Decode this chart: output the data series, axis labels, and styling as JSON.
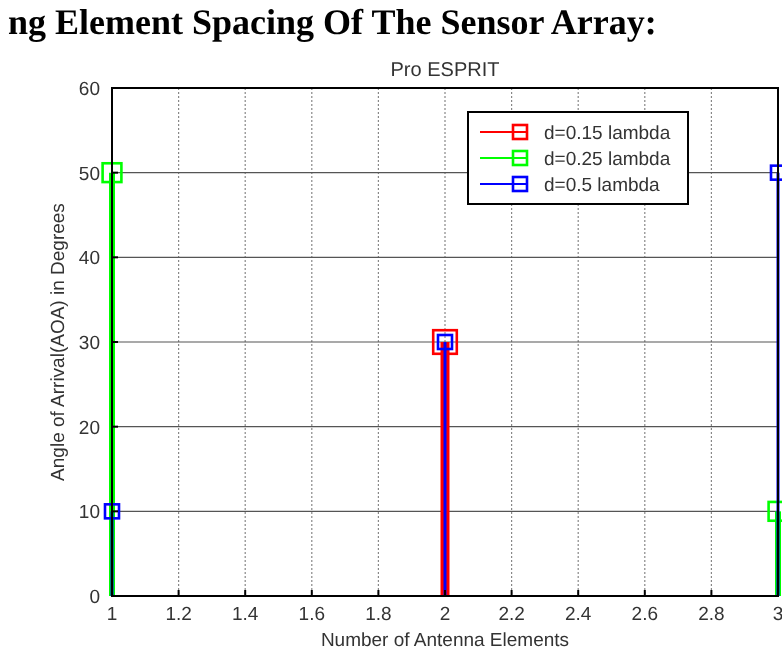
{
  "chart_data": {
    "type": "lollipop",
    "title": "Pro ESPRIT",
    "xlabel": "Number of Antenna Elements",
    "ylabel": "Angle of Arrival(AOA) in Degrees",
    "annotations": [
      "ng Element Spacing Of The Sensor Array:"
    ],
    "x": [
      1,
      2,
      3
    ],
    "series": [
      {
        "name": "d=0.15 lambda",
        "color": "#ff0000",
        "values": [
          null,
          30,
          null
        ]
      },
      {
        "name": "d=0.25 lambda",
        "color": "#00ff00",
        "values": [
          50,
          null,
          10
        ]
      },
      {
        "name": "d=0.5 lambda",
        "color": "#0000ff",
        "values": [
          10,
          30,
          50
        ]
      }
    ],
    "xlim": [
      1,
      3
    ],
    "xticks": [
      1,
      1.2,
      1.4,
      1.6,
      1.8,
      2,
      2.2,
      2.4,
      2.6,
      2.8,
      3
    ],
    "ylim": [
      0,
      60
    ],
    "yticks": [
      0,
      10,
      20,
      30,
      40,
      50,
      60
    ],
    "grid": true,
    "legend": "top right",
    "marker": "square",
    "line_style": "solid"
  }
}
